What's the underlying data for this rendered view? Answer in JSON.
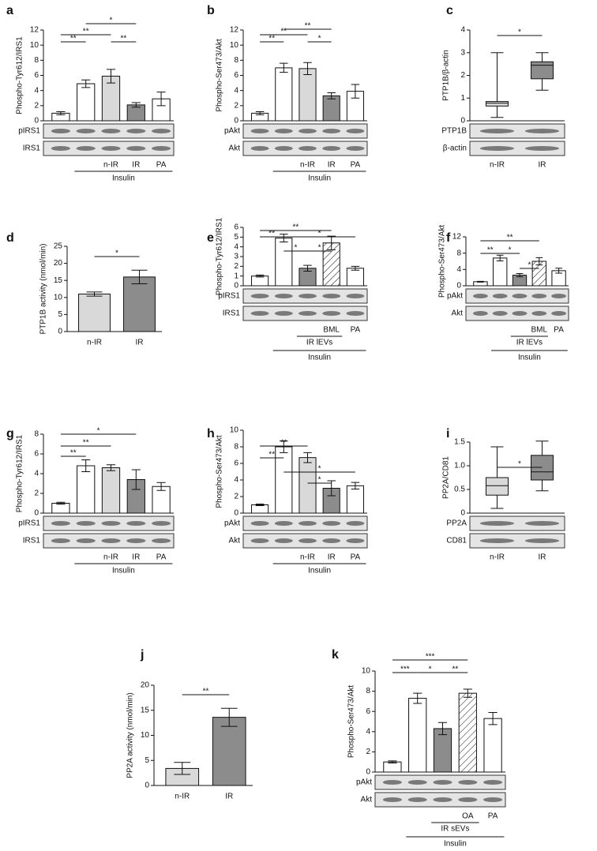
{
  "chart_data": [
    {
      "type": "bar",
      "panel": "a",
      "ylabel": "Phospho-Tyr612/IRS1",
      "categories": [
        null,
        null,
        "n-IR",
        "IR",
        "PA"
      ],
      "values": [
        1,
        4.9,
        5.9,
        2.1,
        2.9
      ],
      "errors": [
        0.2,
        0.5,
        0.9,
        0.3,
        0.9
      ],
      "fills": [
        "#ffffff",
        "#ffffff",
        "#d9d9d9",
        "#8c8c8c",
        "#ffffff"
      ],
      "ylim": [
        0,
        12
      ],
      "yticks": [
        0,
        2,
        4,
        6,
        8,
        10,
        12
      ],
      "significance": [
        "**",
        "**",
        "*",
        "**"
      ],
      "blots": [
        "pIRS1",
        "IRS1"
      ],
      "group": "Insulin"
    },
    {
      "type": "bar",
      "panel": "b",
      "ylabel": "Phospho-Ser473/Akt",
      "categories": [
        null,
        null,
        "n-IR",
        "IR",
        "PA"
      ],
      "values": [
        1,
        7,
        6.9,
        3.3,
        3.9
      ],
      "errors": [
        0.2,
        0.6,
        0.8,
        0.4,
        0.9
      ],
      "fills": [
        "#ffffff",
        "#ffffff",
        "#d9d9d9",
        "#8c8c8c",
        "#ffffff"
      ],
      "ylim": [
        0,
        12
      ],
      "yticks": [
        0,
        2,
        4,
        6,
        8,
        10,
        12
      ],
      "significance": [
        "**",
        "**",
        "**",
        "*"
      ],
      "blots": [
        "pAkt",
        "Akt"
      ],
      "group": "Insulin"
    },
    {
      "type": "box",
      "panel": "c",
      "ylabel": "PTP1B/β-actin",
      "categories": [
        "n-IR",
        "IR"
      ],
      "boxes": [
        {
          "min": 0.15,
          "q1": 0.65,
          "median": 0.78,
          "q3": 0.85,
          "max": 3.0
        },
        {
          "min": 1.35,
          "q1": 1.85,
          "median": 2.45,
          "q3": 2.6,
          "max": 3.0
        }
      ],
      "fills": [
        "#d9d9d9",
        "#8c8c8c"
      ],
      "ylim": [
        0,
        4
      ],
      "yticks": [
        0,
        1,
        2,
        3,
        4
      ],
      "significance": [
        "*"
      ],
      "blots": [
        "PTP1B",
        "β-actin"
      ]
    },
    {
      "type": "bar",
      "panel": "d",
      "ylabel": "PTP1B activity (nmol/min)",
      "categories": [
        "n-IR",
        "IR"
      ],
      "values": [
        11,
        16
      ],
      "errors": [
        0.6,
        2
      ],
      "fills": [
        "#d9d9d9",
        "#8c8c8c"
      ],
      "ylim": [
        0,
        25
      ],
      "yticks": [
        0,
        5,
        10,
        15,
        20,
        25
      ],
      "significance": [
        "*"
      ]
    },
    {
      "type": "bar",
      "panel": "e",
      "ylabel": "Phospho-Tyr612/IRS1",
      "categories": [
        null,
        null,
        null,
        "BML",
        "PA"
      ],
      "values": [
        1,
        4.9,
        1.8,
        4.4,
        1.8
      ],
      "errors": [
        0.1,
        0.4,
        0.3,
        0.7,
        0.2
      ],
      "fills": [
        "#ffffff",
        "#ffffff",
        "#8c8c8c",
        "hatch",
        "#ffffff"
      ],
      "ylim": [
        0,
        6
      ],
      "yticks": [
        0,
        1,
        2,
        3,
        4,
        5,
        6
      ],
      "significance": [
        "**",
        "**",
        "*",
        "*",
        "*"
      ],
      "blots": [
        "pIRS1",
        "IRS1"
      ],
      "subgroup": "IR lEVs",
      "group": "Insulin"
    },
    {
      "type": "bar",
      "panel": "f",
      "ylabel": "Phospho-Ser473/Akt",
      "categories": [
        null,
        null,
        null,
        "BML",
        "PA"
      ],
      "values": [
        1,
        6.8,
        2.6,
        6,
        3.7
      ],
      "errors": [
        0.1,
        0.7,
        0.4,
        0.9,
        0.6
      ],
      "fills": [
        "#ffffff",
        "#ffffff",
        "#8c8c8c",
        "hatch",
        "#ffffff"
      ],
      "ylim": [
        0,
        12
      ],
      "yticks": [
        0,
        4,
        8,
        12
      ],
      "significance": [
        "**",
        "**",
        "*",
        "*"
      ],
      "blots": [
        "pAkt",
        "Akt"
      ],
      "subgroup": "IR lEVs",
      "group": "Insulin"
    },
    {
      "type": "bar",
      "panel": "g",
      "ylabel": "Phospho-Tyr612/IRS1",
      "categories": [
        null,
        null,
        "n-IR",
        "IR",
        "PA"
      ],
      "values": [
        1,
        4.8,
        4.6,
        3.4,
        2.7
      ],
      "errors": [
        0.1,
        0.6,
        0.3,
        1,
        0.4
      ],
      "fills": [
        "#ffffff",
        "#ffffff",
        "#d9d9d9",
        "#8c8c8c",
        "#ffffff"
      ],
      "ylim": [
        0,
        8
      ],
      "yticks": [
        0,
        2,
        4,
        6,
        8
      ],
      "significance": [
        "**",
        "**",
        "*"
      ],
      "blots": [
        "pIRS1",
        "IRS1"
      ],
      "group": "Insulin"
    },
    {
      "type": "bar",
      "panel": "h",
      "ylabel": "Phospho-Ser473/Akt",
      "categories": [
        null,
        null,
        "n-IR",
        "IR",
        "PA"
      ],
      "values": [
        1,
        8,
        6.7,
        3,
        3.3
      ],
      "errors": [
        0.1,
        0.7,
        0.6,
        0.9,
        0.4
      ],
      "fills": [
        "#ffffff",
        "#ffffff",
        "#d9d9d9",
        "#8c8c8c",
        "#ffffff"
      ],
      "ylim": [
        0,
        10
      ],
      "yticks": [
        0,
        2,
        4,
        6,
        8,
        10
      ],
      "significance": [
        "**",
        "**",
        "*",
        "*"
      ],
      "blots": [
        "pAkt",
        "Akt"
      ],
      "group": "Insulin"
    },
    {
      "type": "box",
      "panel": "i",
      "ylabel": "PP2A/CD81",
      "categories": [
        "n-IR",
        "IR"
      ],
      "boxes": [
        {
          "min": 0.1,
          "q1": 0.38,
          "median": 0.58,
          "q3": 0.75,
          "max": 1.4
        },
        {
          "min": 0.47,
          "q1": 0.7,
          "median": 0.87,
          "q3": 1.22,
          "max": 1.52
        }
      ],
      "fills": [
        "#d9d9d9",
        "#8c8c8c"
      ],
      "ylim": [
        0,
        1.5
      ],
      "yticks": [
        0,
        0.5,
        {
          "value": 1,
          "label": "1.0"
        },
        1.5
      ],
      "significance": [
        "*"
      ],
      "blots": [
        "PP2A",
        "CD81"
      ]
    },
    {
      "type": "bar",
      "panel": "j",
      "ylabel": "PP2A activity (nmol/min)",
      "categories": [
        "n-IR",
        "IR"
      ],
      "values": [
        3.4,
        13.6
      ],
      "errors": [
        1.2,
        1.8
      ],
      "fills": [
        "#d9d9d9",
        "#8c8c8c"
      ],
      "ylim": [
        0,
        20
      ],
      "yticks": [
        0,
        5,
        10,
        15,
        20
      ],
      "significance": [
        "**"
      ]
    },
    {
      "type": "bar",
      "panel": "k",
      "ylabel": "Phospho-Ser473/Akt",
      "categories": [
        null,
        null,
        null,
        "OA",
        "PA"
      ],
      "values": [
        1,
        7.3,
        4.3,
        7.8,
        5.3
      ],
      "errors": [
        0.1,
        0.5,
        0.6,
        0.4,
        0.6
      ],
      "fills": [
        "#ffffff",
        "#ffffff",
        "#8c8c8c",
        "hatch",
        "#ffffff"
      ],
      "ylim": [
        0,
        10
      ],
      "yticks": [
        0,
        2,
        4,
        6,
        8,
        10
      ],
      "significance": [
        "***",
        "***",
        "*",
        "**"
      ],
      "blots": [
        "pAkt",
        "Akt"
      ],
      "subgroup": "IR sEVs",
      "group": "Insulin"
    }
  ]
}
